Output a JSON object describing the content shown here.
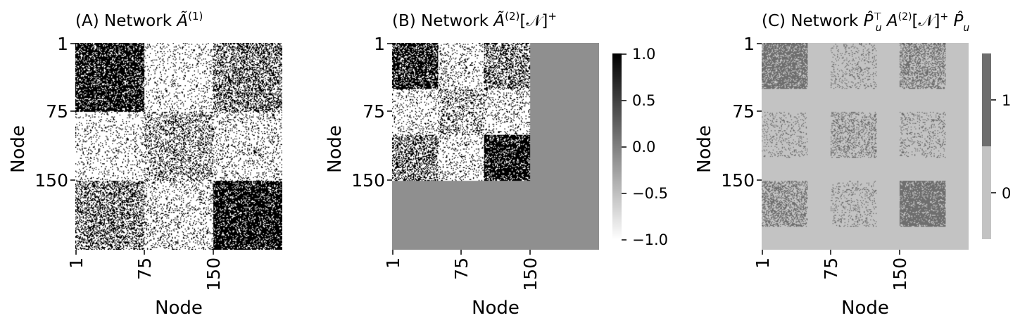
{
  "chart_data": [
    {
      "type": "heatmap",
      "title": "(A) Network Ã(1)",
      "title_parts": {
        "prefix": "(A) Network ",
        "base": "Ã",
        "sup": "(1)",
        "suffix": ""
      },
      "xlabel": "Node",
      "ylabel": "Node",
      "x_ticks": [
        "1",
        "75",
        "150"
      ],
      "y_ticks": [
        "1",
        "75",
        "150"
      ],
      "n_nodes": 225,
      "blocks": [
        [
          1,
          75
        ],
        [
          76,
          150
        ],
        [
          151,
          225
        ]
      ],
      "block_densities": [
        [
          0.78,
          0.12,
          0.45
        ],
        [
          0.12,
          0.32,
          0.16
        ],
        [
          0.45,
          0.16,
          0.82
        ]
      ],
      "colormap": "binary (white = 0, black = 1)",
      "colors": {
        "on": "#000000",
        "off": "#ffffff"
      },
      "colorbar": false
    },
    {
      "type": "heatmap",
      "title": "(B) Network Ã(2)[𝒩]+",
      "title_parts": {
        "prefix": "(B) Network ",
        "base": "Ã",
        "sup": "(2)",
        "suffix": "[𝒩]",
        "sup2": "+"
      },
      "xlabel": "Node",
      "ylabel": "Node",
      "x_ticks": [
        "1",
        "75",
        "150"
      ],
      "y_ticks": [
        "1",
        "75",
        "150"
      ],
      "n_nodes": 225,
      "observed_nodes": 150,
      "blocks": [
        [
          1,
          50
        ],
        [
          51,
          100
        ],
        [
          101,
          150
        ]
      ],
      "block_densities": [
        [
          0.75,
          0.15,
          0.45
        ],
        [
          0.15,
          0.3,
          0.15
        ],
        [
          0.45,
          0.15,
          0.8
        ]
      ],
      "unobserved_value": 0.0,
      "colors": {
        "on": "#000000",
        "off": "#ffffff",
        "unobserved": "#8f8f8f"
      },
      "colorbar": {
        "ticks": [
          "1.0",
          "0.5",
          "0.0",
          "−0.5",
          "−1.0"
        ],
        "range": [
          -1.0,
          1.0
        ],
        "colormap": "gray: white (−1) → black (+1)"
      }
    },
    {
      "type": "heatmap",
      "title": "(C) Network P̂uᵀ A(2)[𝒩]+ P̂u",
      "title_parts": {
        "prefix": "(C) Network ",
        "p1": "P̂",
        "p1_sup": "⊤",
        "p1_sub": "u",
        "mid": " A",
        "mid_sup": "(2)",
        "bracket": "[𝒩]",
        "plus": "+",
        "p2": " P̂",
        "p2_sub": "u"
      },
      "xlabel": "Node",
      "ylabel": "Node",
      "x_ticks": [
        "1",
        "75",
        "150"
      ],
      "y_ticks": [
        "1",
        "75",
        "150"
      ],
      "n_nodes": 225,
      "block_ranges": [
        [
          1,
          50
        ],
        [
          76,
          125
        ],
        [
          151,
          200
        ]
      ],
      "block_densities": [
        [
          0.75,
          0.15,
          0.45
        ],
        [
          0.15,
          0.3,
          0.15
        ],
        [
          0.45,
          0.15,
          0.8
        ]
      ],
      "colors": {
        "one": "#6e6e6e",
        "zero": "#c3c3c3"
      },
      "colorbar": {
        "ticks": [
          "1",
          "0"
        ],
        "levels": [
          0,
          1
        ]
      }
    }
  ]
}
